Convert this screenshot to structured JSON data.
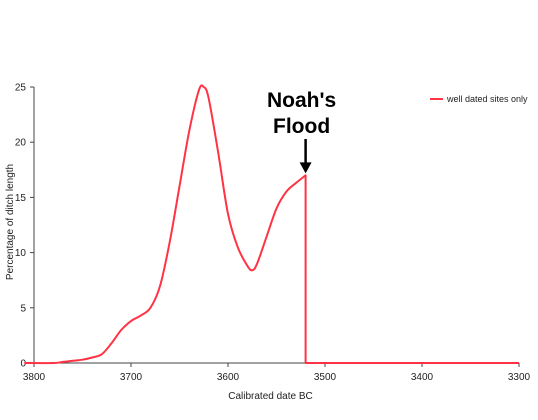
{
  "chart_data": {
    "type": "line",
    "xlabel": "Calibrated date BC",
    "ylabel": "Percentage of ditch length",
    "x_direction": "reversed",
    "xlim": [
      3800,
      3300
    ],
    "ylim": [
      0,
      25
    ],
    "x_ticks": [
      3800,
      3700,
      3600,
      3500,
      3400,
      3300
    ],
    "y_ticks": [
      0,
      5,
      10,
      15,
      20,
      25
    ],
    "grid": false,
    "legend_position": "top-right",
    "series": [
      {
        "name": "well dated sites only",
        "color": "#ff3344",
        "points": [
          [
            3810,
            0
          ],
          [
            3780,
            0
          ],
          [
            3770,
            0.1
          ],
          [
            3760,
            0.2
          ],
          [
            3750,
            0.3
          ],
          [
            3740,
            0.5
          ],
          [
            3730,
            0.8
          ],
          [
            3720,
            1.8
          ],
          [
            3710,
            3.0
          ],
          [
            3700,
            3.8
          ],
          [
            3690,
            4.3
          ],
          [
            3680,
            5.0
          ],
          [
            3670,
            7.0
          ],
          [
            3660,
            11.0
          ],
          [
            3650,
            16.0
          ],
          [
            3640,
            21.0
          ],
          [
            3630,
            24.7
          ],
          [
            3625,
            25.0
          ],
          [
            3620,
            24.0
          ],
          [
            3610,
            19.0
          ],
          [
            3600,
            13.5
          ],
          [
            3590,
            10.5
          ],
          [
            3580,
            8.8
          ],
          [
            3575,
            8.4
          ],
          [
            3570,
            9.0
          ],
          [
            3560,
            11.5
          ],
          [
            3550,
            14.0
          ],
          [
            3540,
            15.5
          ],
          [
            3530,
            16.3
          ],
          [
            3520,
            17.0
          ],
          [
            3520,
            0
          ],
          [
            3300,
            0
          ]
        ]
      }
    ],
    "annotations": [
      {
        "text_lines": [
          "Noah's",
          "Flood"
        ],
        "arrow": "down",
        "x": 3520,
        "y": 17.0
      }
    ]
  }
}
